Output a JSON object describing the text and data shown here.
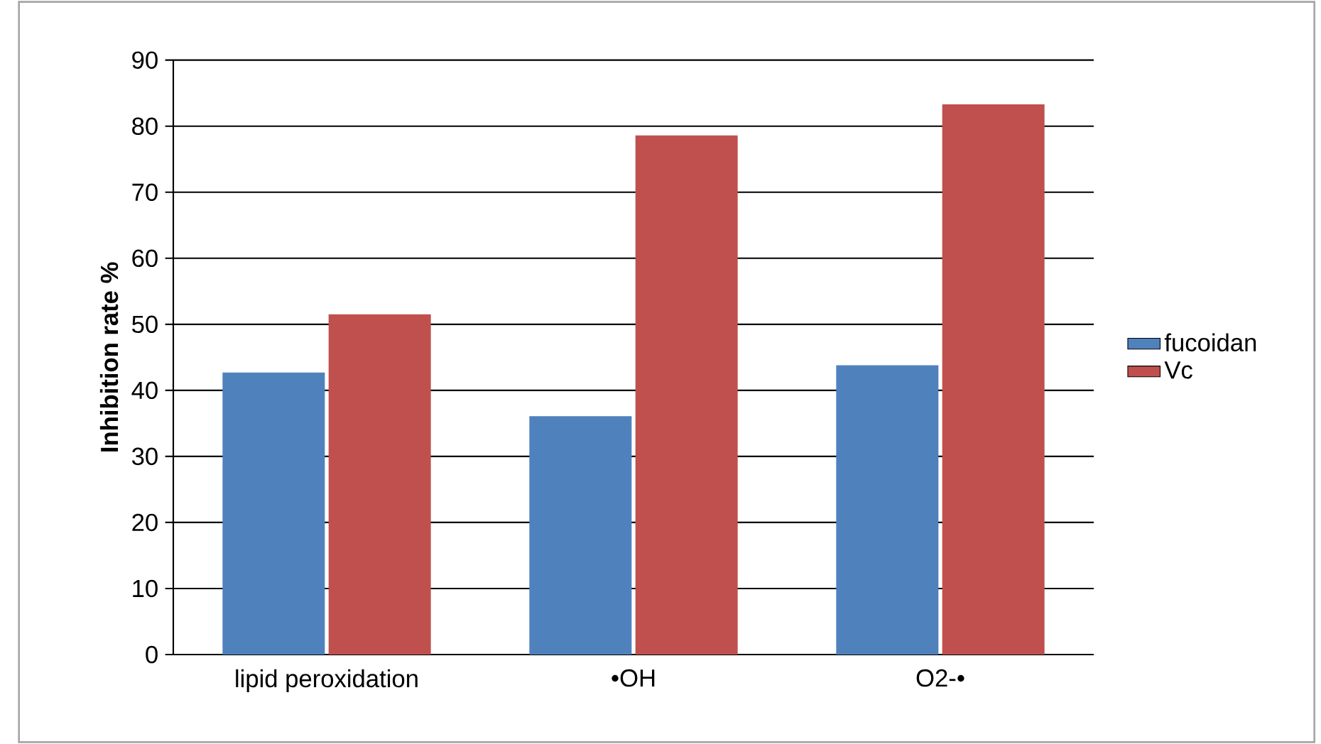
{
  "chart_data": {
    "type": "bar",
    "ylabel": "Inhibition rate  %",
    "categories": [
      "lipid peroxidation",
      "•OH",
      "O2-•"
    ],
    "series": [
      {
        "name": "fucoidan",
        "color": "#4f81bd",
        "values": [
          42.7,
          36.1,
          43.8
        ]
      },
      {
        "name": "Vc",
        "color": "#c0504d",
        "values": [
          51.5,
          78.6,
          83.3
        ]
      }
    ],
    "ylim": [
      0,
      90
    ],
    "yticks": [
      0,
      10,
      20,
      30,
      40,
      50,
      60,
      70,
      80,
      90
    ],
    "grid": "y",
    "legend": "right"
  }
}
